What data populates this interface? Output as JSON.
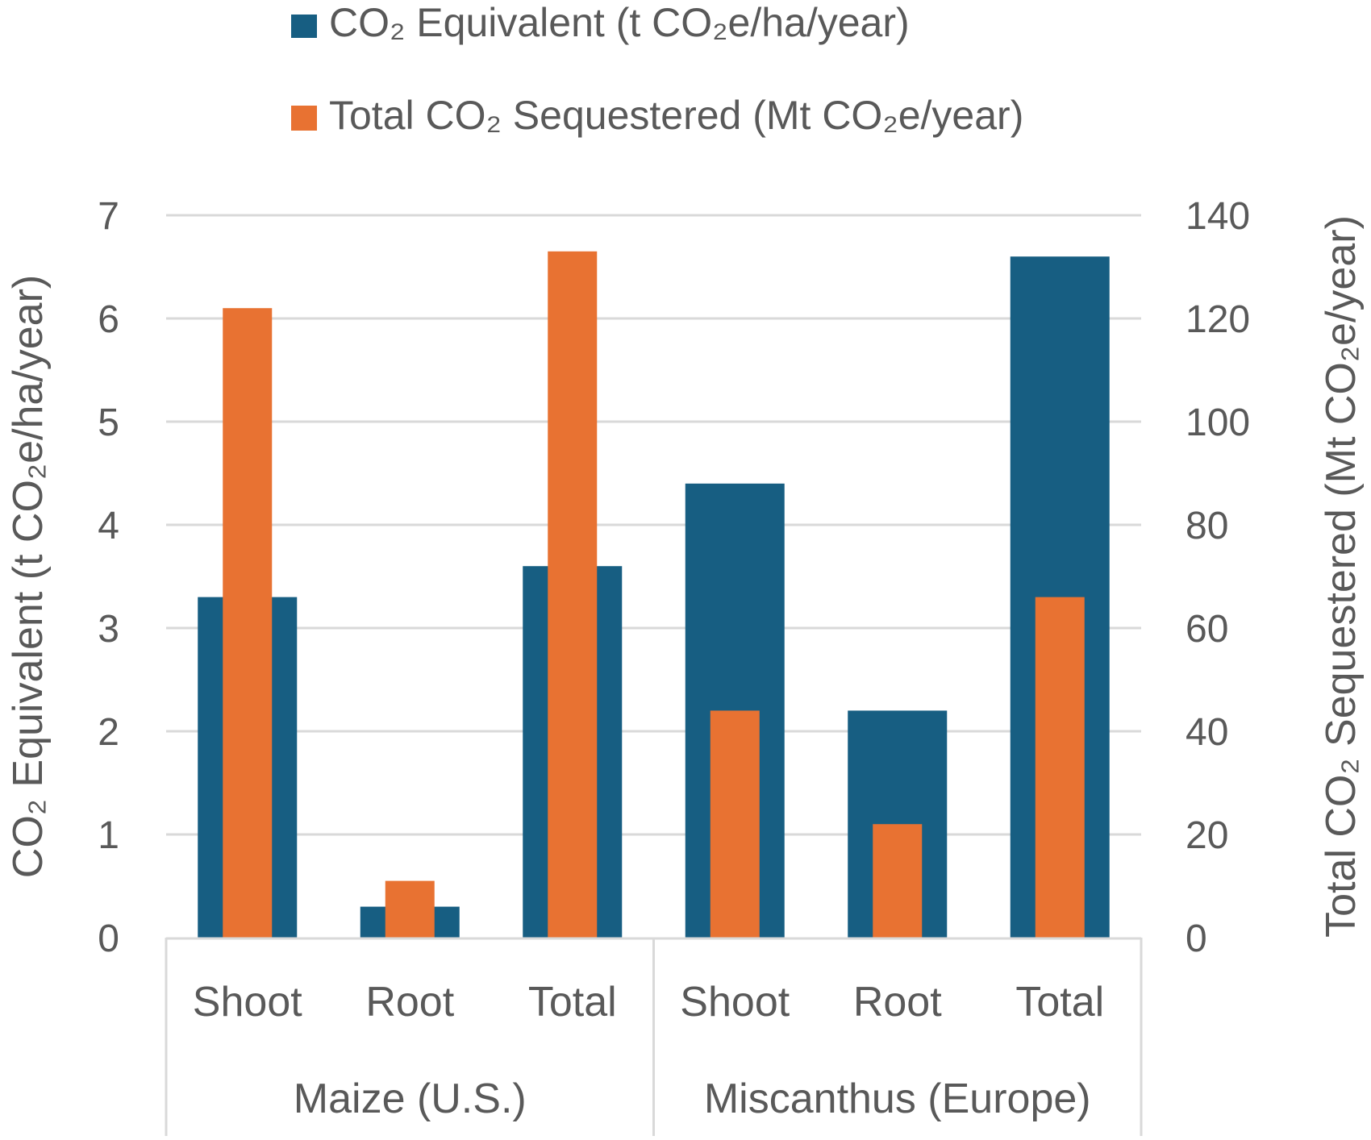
{
  "chart_data": {
    "type": "bar",
    "categories": [
      "Shoot",
      "Root",
      "Total",
      "Shoot",
      "Root",
      "Total"
    ],
    "groups": [
      {
        "label": "Maize (U.S.)",
        "categories": [
          "Shoot",
          "Root",
          "Total"
        ]
      },
      {
        "label": "Miscanthus (Europe)",
        "categories": [
          "Shoot",
          "Root",
          "Total"
        ]
      }
    ],
    "series": [
      {
        "name": "CO₂ Equivalent (t CO₂e/ha/year)",
        "axis": "left",
        "color": "#175e82",
        "values": [
          3.3,
          0.3,
          3.6,
          4.4,
          2.2,
          6.6
        ]
      },
      {
        "name": "Total CO₂ Sequestered (Mt CO₂e/year)",
        "axis": "right",
        "color": "#e87232",
        "values": [
          122,
          11,
          133,
          44,
          22,
          66
        ]
      }
    ],
    "ylabel": "CO₂ Equivalent (t CO₂e/ha/year)",
    "y2label": "Total CO₂ Sequestered (Mt CO₂e/year)",
    "ylim": [
      0,
      7
    ],
    "y2lim": [
      0,
      140
    ],
    "yticks": [
      "0",
      "1",
      "2",
      "3",
      "4",
      "5",
      "6",
      "7"
    ],
    "y2ticks": [
      "0",
      "20",
      "40",
      "60",
      "80",
      "100",
      "120",
      "140"
    ],
    "grid": true,
    "legend_position": "top"
  }
}
